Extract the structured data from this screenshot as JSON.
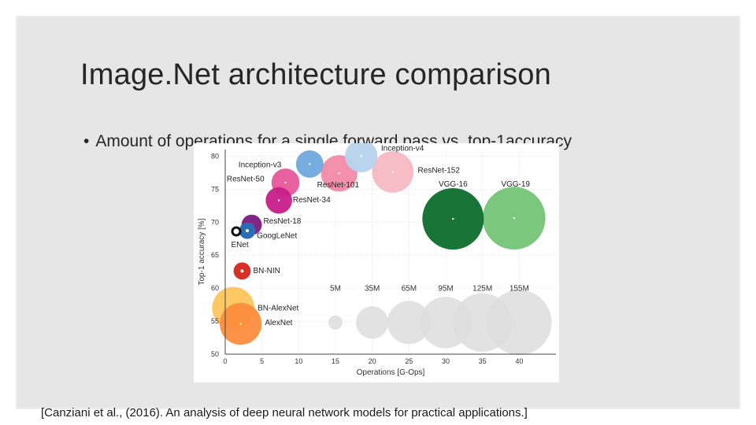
{
  "slide": {
    "title": "Image.Net architecture comparison",
    "bullet_marker": "•",
    "bullet": "Amount of operations for a single forward pass vs. top-1accuracy",
    "citation": "[Canziani et al., (2016). An analysis of deep neural network models for practical applications.]"
  },
  "chart_data": {
    "type": "scatter",
    "title": "",
    "xlabel": "Operations [G-Ops]",
    "ylabel": "Top-1 accuracy [%]",
    "xlim": [
      0,
      45
    ],
    "ylim": [
      50,
      81
    ],
    "xticks": [
      0,
      5,
      10,
      15,
      20,
      25,
      30,
      35,
      40
    ],
    "yticks": [
      50,
      55,
      60,
      65,
      70,
      75,
      80
    ],
    "grid": true,
    "size_unit": "parameters (millions)",
    "points": [
      {
        "name": "Inception-v4",
        "ops": 18.5,
        "acc": 80.0,
        "params": 35,
        "color": "#b8d3ee"
      },
      {
        "name": "Inception-v3",
        "ops": 11.5,
        "acc": 78.8,
        "params": 24,
        "color": "#6fa8dc"
      },
      {
        "name": "ResNet-152",
        "ops": 22.8,
        "acc": 77.6,
        "params": 60,
        "color": "#f7b9c3"
      },
      {
        "name": "ResNet-101",
        "ops": 15.5,
        "acc": 77.4,
        "params": 45,
        "color": "#f28aa8"
      },
      {
        "name": "ResNet-50",
        "ops": 8.2,
        "acc": 76.0,
        "params": 25,
        "color": "#e8579a"
      },
      {
        "name": "ResNet-34",
        "ops": 7.3,
        "acc": 73.3,
        "params": 22,
        "color": "#c71f8a"
      },
      {
        "name": "ResNet-18",
        "ops": 3.6,
        "acc": 69.6,
        "params": 12,
        "color": "#7b1a7e"
      },
      {
        "name": "GoogLeNet",
        "ops": 3.0,
        "acc": 68.7,
        "params": 7,
        "color": "#2a6cb5"
      },
      {
        "name": "ENet",
        "ops": 1.5,
        "acc": 68.6,
        "params": 0.4,
        "color": "#111111"
      },
      {
        "name": "VGG-16",
        "ops": 31.0,
        "acc": 70.5,
        "params": 138,
        "color": "#0c6e2c"
      },
      {
        "name": "VGG-19",
        "ops": 39.3,
        "acc": 70.6,
        "params": 144,
        "color": "#74c476"
      },
      {
        "name": "BN-NIN",
        "ops": 2.3,
        "acc": 62.6,
        "params": 8,
        "color": "#d73027"
      },
      {
        "name": "BN-AlexNet",
        "ops": 1.1,
        "acc": 57.0,
        "params": 62,
        "color": "#fdc55b"
      },
      {
        "name": "AlexNet",
        "ops": 2.1,
        "acc": 54.6,
        "params": 61,
        "color": "#fd8d3c"
      }
    ],
    "size_legend": [
      {
        "label": "5M",
        "ops": 15,
        "params": 5
      },
      {
        "label": "35M",
        "ops": 20,
        "params": 35
      },
      {
        "label": "65M",
        "ops": 25,
        "params": 65
      },
      {
        "label": "95M",
        "ops": 30,
        "params": 95
      },
      {
        "label": "125M",
        "ops": 35,
        "params": 125
      },
      {
        "label": "155M",
        "ops": 40,
        "params": 155
      }
    ],
    "legend_color": "#dddddd"
  }
}
